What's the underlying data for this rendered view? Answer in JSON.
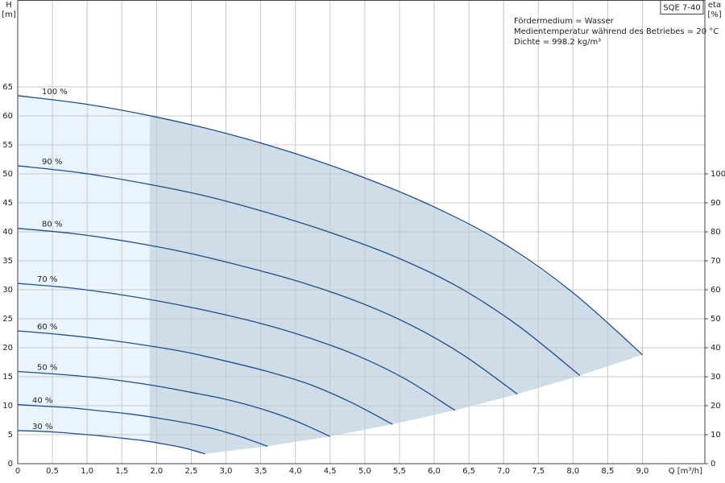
{
  "chart_data": {
    "type": "line",
    "box_title": "SQE 7-40",
    "annotations": [
      "Fördermedium = Wasser",
      "Medientemperatur während des Betriebes = 20 °C",
      "Dichte = 998.2 kg/m³"
    ],
    "xlabel": "Q [m³/h]",
    "ylabel": "H",
    "ylabel_unit": "[m]",
    "y2label": "eta",
    "y2label_unit": "[%]",
    "xlim": [
      0,
      9.9
    ],
    "ylim": [
      0,
      80
    ],
    "y2lim": [
      0,
      160
    ],
    "xticks": [
      0,
      {
        "value": 0.5,
        "label": "0,5"
      },
      {
        "value": 1,
        "label": "1,0"
      },
      {
        "value": 1.5,
        "label": "1,5"
      },
      {
        "value": 2,
        "label": "2,0"
      },
      {
        "value": 2.5,
        "label": "2,5"
      },
      {
        "value": 3,
        "label": "3,0"
      },
      {
        "value": 3.5,
        "label": "3,5"
      },
      {
        "value": 4,
        "label": "4,0"
      },
      {
        "value": 4.5,
        "label": "4,5"
      },
      {
        "value": 5,
        "label": "5,0"
      },
      {
        "value": 5.5,
        "label": "5,5"
      },
      {
        "value": 6,
        "label": "6,0"
      },
      {
        "value": 6.5,
        "label": "6,5"
      },
      {
        "value": 7,
        "label": "7,0"
      },
      {
        "value": 7.5,
        "label": "7,5"
      },
      {
        "value": 8,
        "label": "8,0"
      },
      {
        "value": 8.5,
        "label": "8,5"
      },
      {
        "value": 9,
        "label": "9,0"
      }
    ],
    "yticks": [
      0,
      5,
      10,
      15,
      20,
      25,
      30,
      35,
      40,
      45,
      50,
      55,
      60,
      65
    ],
    "y2ticks": [
      0,
      10,
      20,
      30,
      40,
      50,
      60,
      70,
      80,
      90,
      100
    ],
    "grid": true,
    "recommended_range_start": 1.9,
    "line_color": "#1f4e8c",
    "area_colors": [
      "#eaf4fc",
      "#cfdde8"
    ],
    "series": [
      {
        "name": "100 %",
        "x": [
          0,
          1,
          2,
          3,
          4,
          5,
          6,
          7,
          8,
          9
        ],
        "values": [
          63.5,
          62,
          59.8,
          57,
          53.5,
          49.3,
          44.3,
          38,
          29.5,
          18.8
        ]
      },
      {
        "name": "90 %",
        "x": [
          0,
          0.9,
          1.8,
          2.7,
          3.6,
          4.5,
          5.4,
          6.3,
          7.2,
          8.1
        ],
        "values": [
          51.4,
          50.2,
          48.4,
          46.2,
          43.3,
          39.9,
          35.9,
          30.8,
          23.9,
          15.2
        ]
      },
      {
        "name": "80 %",
        "x": [
          0,
          0.8,
          1.6,
          2.4,
          3.2,
          4,
          4.8,
          5.6,
          6.4,
          7.2
        ],
        "values": [
          40.6,
          39.7,
          38.3,
          36.5,
          34.2,
          31.6,
          28.4,
          24.3,
          18.9,
          12.0
        ]
      },
      {
        "name": "70 %",
        "x": [
          0,
          0.7,
          1.4,
          2.1,
          2.8,
          3.5,
          4.2,
          4.9,
          5.6,
          6.3
        ],
        "values": [
          31.1,
          30.4,
          29.3,
          27.9,
          26.2,
          24.2,
          21.7,
          18.6,
          14.5,
          9.2
        ]
      },
      {
        "name": "60 %",
        "x": [
          0,
          0.6,
          1.2,
          1.8,
          2.4,
          3,
          3.6,
          4.2,
          4.8,
          5.4
        ],
        "values": [
          22.9,
          22.3,
          21.5,
          20.5,
          19.3,
          17.7,
          15.9,
          13.7,
          10.6,
          6.8
        ]
      },
      {
        "name": "50 %",
        "x": [
          0,
          0.5,
          1,
          1.5,
          2,
          2.5,
          3,
          3.5,
          4,
          4.5
        ],
        "values": [
          15.9,
          15.5,
          15.0,
          14.3,
          13.4,
          12.3,
          11.1,
          9.5,
          7.4,
          4.7
        ]
      },
      {
        "name": "40 %",
        "x": [
          0,
          0.4,
          0.8,
          1.2,
          1.6,
          2,
          2.4,
          2.8,
          3.2,
          3.6
        ],
        "values": [
          10.2,
          9.9,
          9.6,
          9.1,
          8.6,
          7.9,
          7.1,
          6.1,
          4.7,
          3.0
        ]
      },
      {
        "name": "30 %",
        "x": [
          0,
          0.3,
          0.6,
          0.9,
          1.2,
          1.5,
          1.8,
          2.1,
          2.4,
          2.7
        ],
        "values": [
          5.7,
          5.6,
          5.4,
          5.1,
          4.8,
          4.4,
          4.0,
          3.4,
          2.7,
          1.7
        ]
      }
    ]
  }
}
